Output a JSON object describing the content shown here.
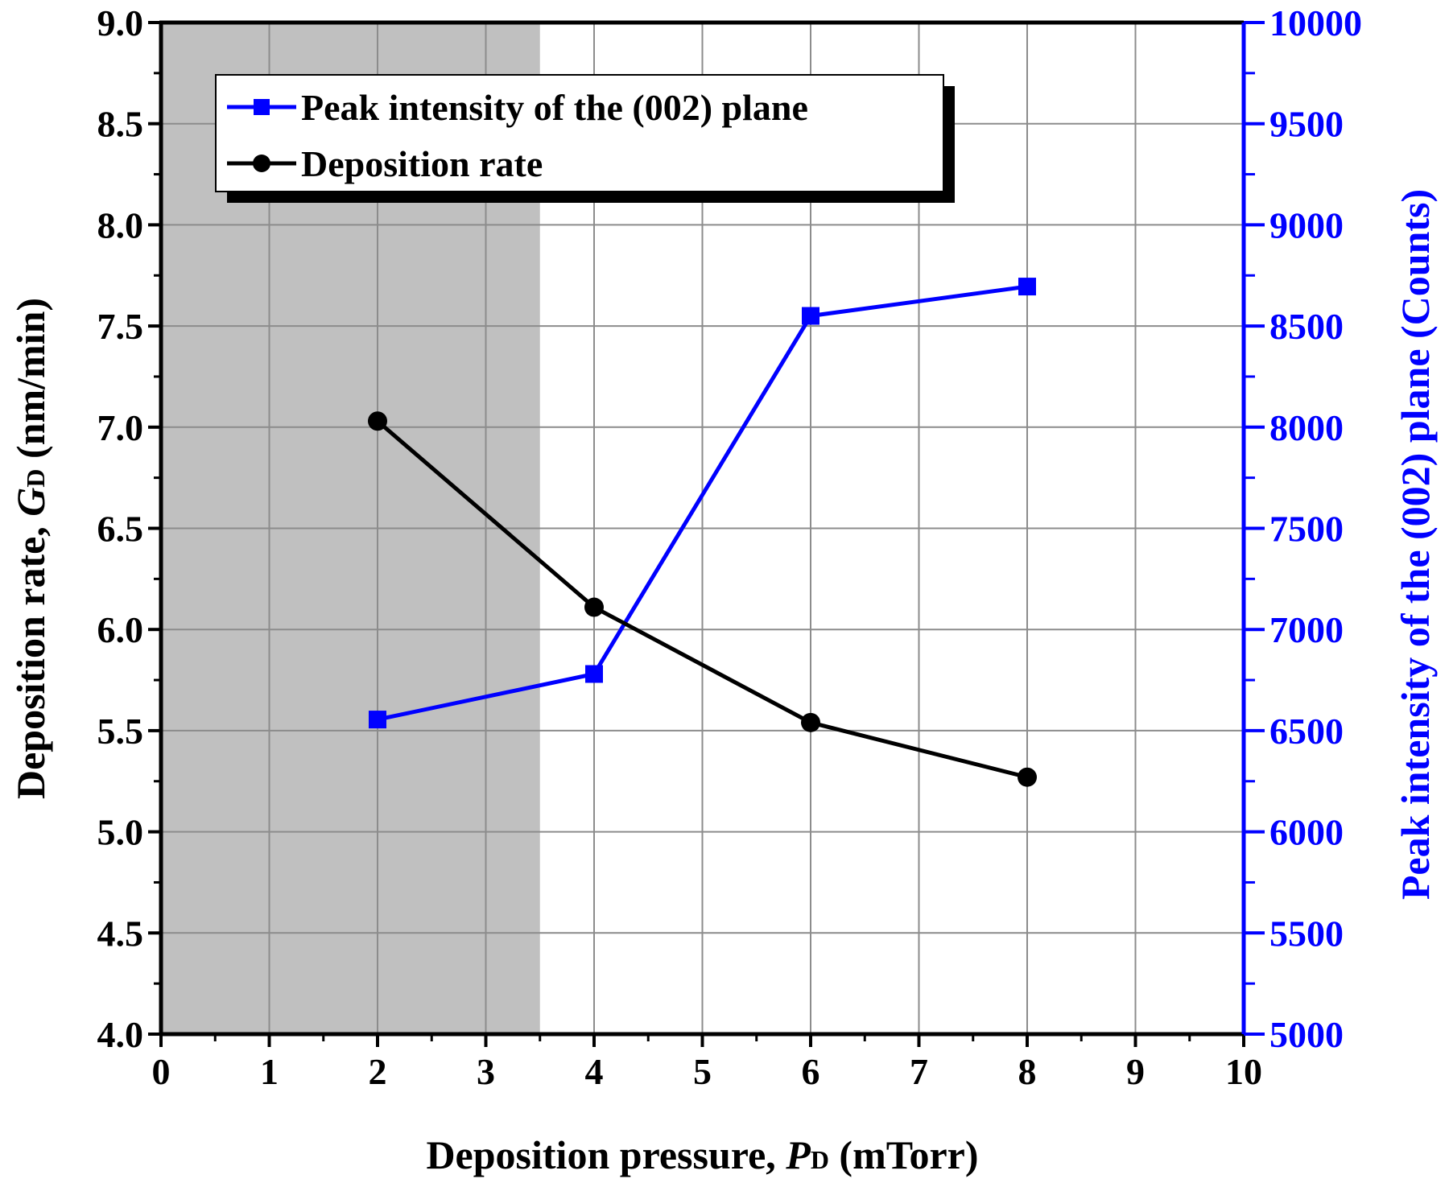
{
  "chart_data": {
    "type": "line",
    "title": "",
    "x": [
      2,
      4,
      6,
      8
    ],
    "xlim": [
      0,
      10
    ],
    "xticks": [
      "0",
      "1",
      "2",
      "3",
      "4",
      "5",
      "6",
      "7",
      "8",
      "9",
      "10"
    ],
    "xlabel": {
      "main": "Deposition pressure, ",
      "symbol": "P",
      "subscript": "D",
      "unit": " (mTorr)"
    },
    "ylabel_left": {
      "main": "Deposition rate, ",
      "symbol": "G",
      "subscript": "D",
      "unit": " (nm/min)"
    },
    "ylabel_right": "Peak intensity of the (002) plane (Counts)",
    "ylim_left": [
      4.0,
      9.0
    ],
    "yticks_left": [
      "4.0",
      "4.5",
      "5.0",
      "5.5",
      "6.0",
      "6.5",
      "7.0",
      "7.5",
      "8.0",
      "8.5",
      "9.0"
    ],
    "ylim_right": [
      5000,
      10000
    ],
    "yticks_right": [
      "5000",
      "5500",
      "6000",
      "6500",
      "7000",
      "7500",
      "8000",
      "8500",
      "9000",
      "9500",
      "10000"
    ],
    "grid": true,
    "shaded_region": {
      "x_from": 0,
      "x_to": 3.5,
      "color": "#c0c0c0"
    },
    "series": [
      {
        "name": "Peak intensity of the (002) plane",
        "axis": "right",
        "marker": "square",
        "color": "#0000ff",
        "values": [
          6555,
          6780,
          8550,
          8695
        ]
      },
      {
        "name": "Deposition rate",
        "axis": "left",
        "marker": "circle",
        "color": "#000000",
        "values": [
          7.03,
          6.11,
          5.54,
          5.27
        ]
      }
    ],
    "legend_position": "top-left"
  }
}
